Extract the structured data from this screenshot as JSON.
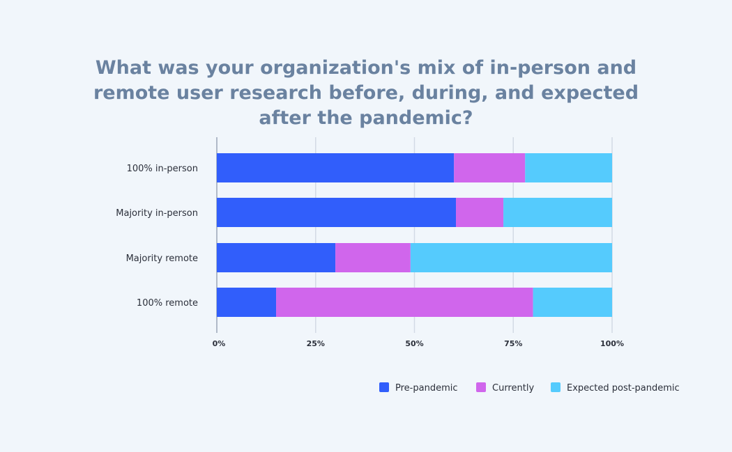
{
  "chart_data": {
    "type": "bar",
    "orientation": "horizontal",
    "stacked": true,
    "title": "What was your organization's mix of in-person and remote user research before, during, and expected after the pandemic?",
    "categories": [
      "100% in-person",
      "Majority in-person",
      "Majority remote",
      "100% remote"
    ],
    "series": [
      {
        "name": "Pre-pandemic",
        "color": "#315efb",
        "values": [
          60,
          60.5,
          30,
          15
        ]
      },
      {
        "name": "Currently",
        "color": "#d066ec",
        "values": [
          18,
          12,
          19,
          65
        ]
      },
      {
        "name": "Expected post-pandemic",
        "color": "#55cbfd",
        "values": [
          22,
          27.5,
          51,
          20
        ]
      }
    ],
    "xlim": [
      0,
      100
    ],
    "xticks": [
      0,
      25,
      50,
      75,
      100
    ],
    "xtick_labels": [
      "0%",
      "25%",
      "50%",
      "75%",
      "100%"
    ],
    "grid": true,
    "legend_position": "bottom-right"
  }
}
